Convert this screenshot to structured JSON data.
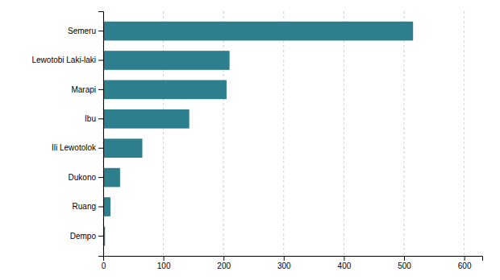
{
  "chart_data": {
    "type": "bar",
    "orientation": "horizontal",
    "categories": [
      "Dempo",
      "Ruang",
      "Dukono",
      "Ili Lewotolok",
      "Ibu",
      "Marapi",
      "Lewotobi Laki-laki",
      "Semeru"
    ],
    "values": [
      3,
      12,
      28,
      65,
      143,
      205,
      210,
      515
    ],
    "color": "#2e7f8e",
    "xlim": [
      0,
      630
    ],
    "xticks": [
      0,
      100,
      200,
      300,
      400,
      500,
      600
    ],
    "grid": true
  }
}
